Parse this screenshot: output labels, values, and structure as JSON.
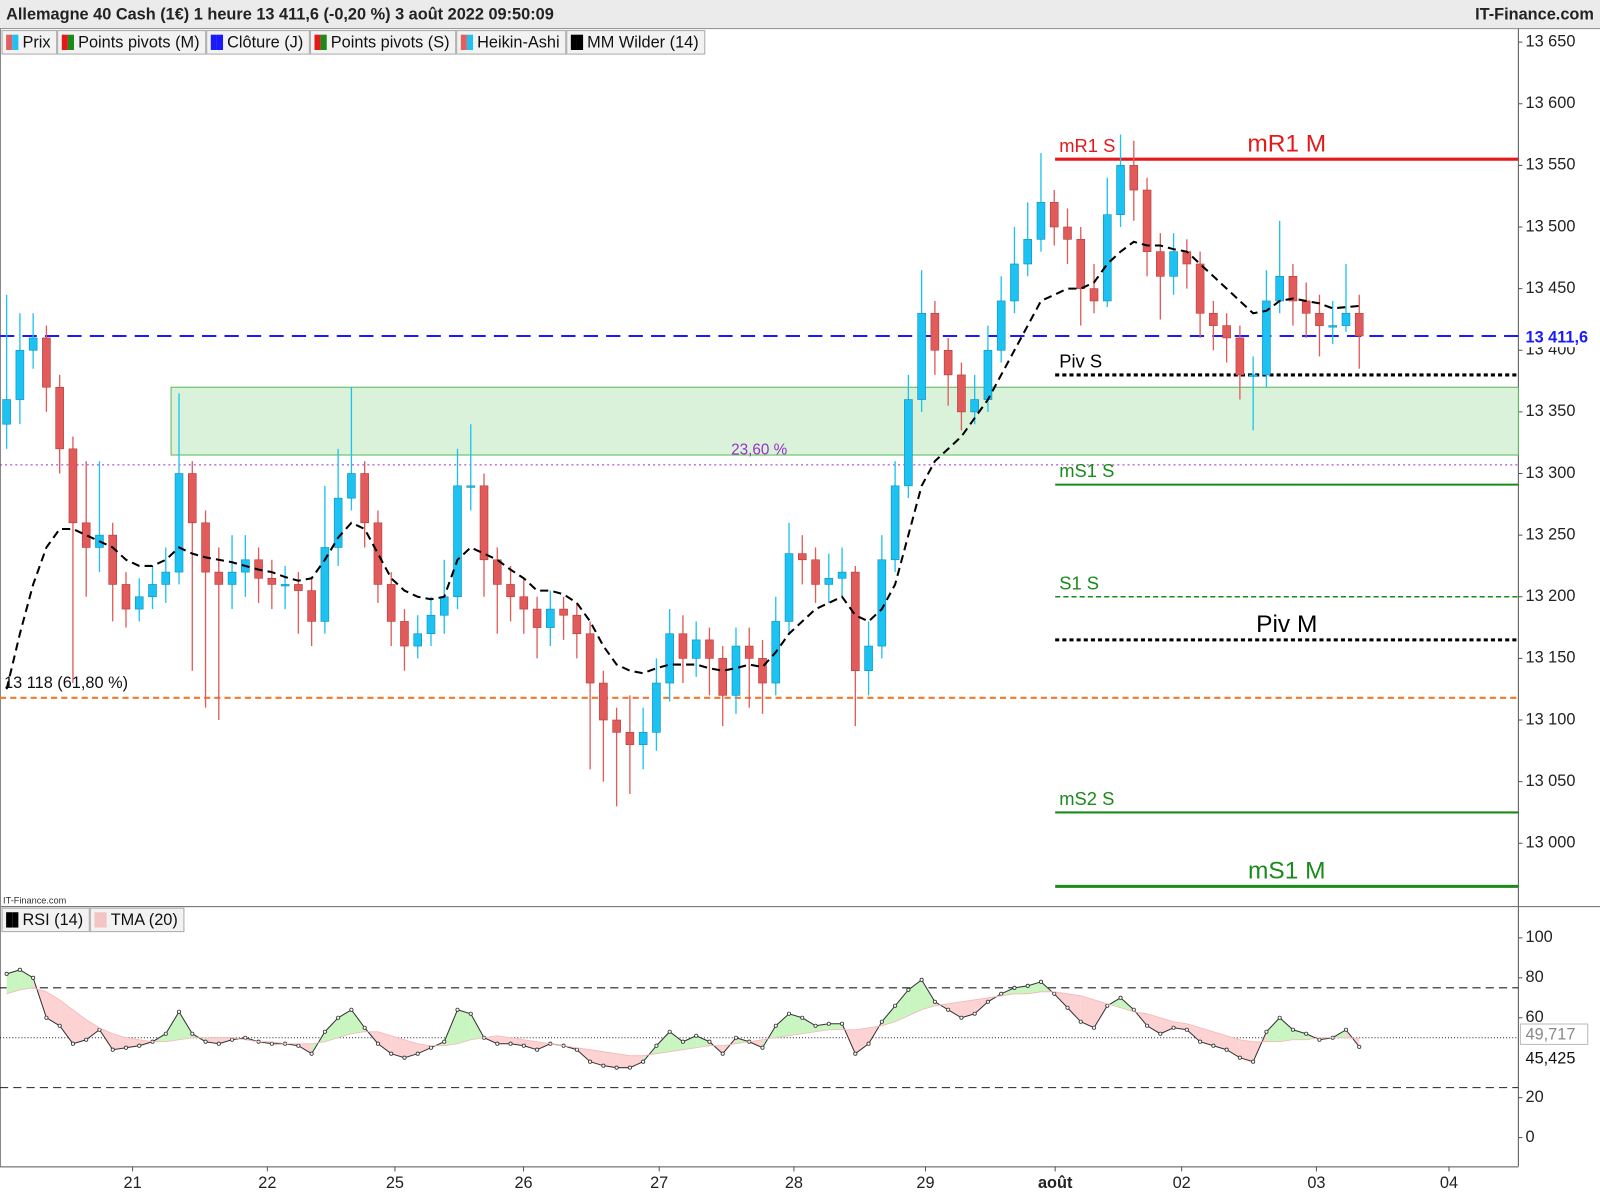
{
  "chart_data": [
    {
      "type": "candlestick",
      "title": "Allemagne 40 Cash (1€) 1 heure 13 411,6 (-0,20 %) 3 août 2022 09:50:09",
      "brand": "IT-Finance.com",
      "watermark": "IT-Finance.com",
      "legend": [
        {
          "name": "Prix",
          "colors": [
            "#e06060",
            "#20c0f0"
          ]
        },
        {
          "name": "Points pivots (M)",
          "colors": [
            "#e31a1c",
            "#1a8a1a"
          ]
        },
        {
          "name": "Clôture (J)",
          "colors": [
            "#1a1aff",
            "#1a1aff"
          ]
        },
        {
          "name": "Points pivots (S)",
          "colors": [
            "#e31a1c",
            "#1a8a1a"
          ]
        },
        {
          "name": "Heikin-Ashi",
          "colors": [
            "#e06060",
            "#20c0f0"
          ]
        },
        {
          "name": "MM Wilder (14)",
          "colors": [
            "#000000",
            "#000000"
          ]
        }
      ],
      "up_color": "#1cc3f2",
      "down_color": "#e15b5b",
      "open": [
        13340,
        13360,
        13400,
        13410,
        13370,
        13320,
        13260,
        13240,
        13250,
        13210,
        13190,
        13200,
        13210,
        13220,
        13300,
        13260,
        13220,
        13210,
        13220,
        13230,
        13215,
        13210,
        13210,
        13205,
        13180,
        13240,
        13280,
        13300,
        13260,
        13210,
        13180,
        13160,
        13170,
        13185,
        13200,
        13290,
        13290,
        13230,
        13210,
        13200,
        13190,
        13175,
        13190,
        13185,
        13170,
        13130,
        13100,
        13090,
        13080,
        13090,
        13130,
        13170,
        13150,
        13165,
        13150,
        13120,
        13160,
        13150,
        13130,
        13180,
        13235,
        13230,
        13210,
        13215,
        13220,
        13140,
        13160,
        13230,
        13290,
        13360,
        13430,
        13400,
        13380,
        13350,
        13360,
        13400,
        13440,
        13470,
        13490,
        13520,
        13500,
        13490,
        13450,
        13440,
        13510,
        13550,
        13530,
        13480,
        13460,
        13480,
        13470,
        13430,
        13420,
        13410,
        13380,
        13380,
        13440,
        13460,
        13440,
        13430,
        13420,
        13420,
        13430
      ],
      "high": [
        13445,
        13430,
        13430,
        13420,
        13380,
        13330,
        13310,
        13310,
        13260,
        13220,
        13215,
        13225,
        13240,
        13365,
        13310,
        13270,
        13240,
        13250,
        13250,
        13240,
        13230,
        13225,
        13220,
        13215,
        13290,
        13320,
        13370,
        13310,
        13270,
        13220,
        13190,
        13185,
        13200,
        13230,
        13320,
        13340,
        13300,
        13240,
        13225,
        13215,
        13200,
        13205,
        13200,
        13195,
        13180,
        13140,
        13110,
        13120,
        13110,
        13150,
        13190,
        13185,
        13180,
        13175,
        13160,
        13175,
        13175,
        13165,
        13200,
        13260,
        13250,
        13240,
        13235,
        13240,
        13225,
        13180,
        13250,
        13310,
        13380,
        13465,
        13440,
        13410,
        13390,
        13380,
        13420,
        13460,
        13500,
        13520,
        13560,
        13530,
        13515,
        13500,
        13470,
        13540,
        13575,
        13570,
        13540,
        13495,
        13495,
        13490,
        13480,
        13440,
        13430,
        13420,
        13395,
        13465,
        13505,
        13470,
        13455,
        13445,
        13440,
        13470,
        13445
      ],
      "low": [
        13320,
        13340,
        13385,
        13350,
        13300,
        13130,
        13200,
        13220,
        13180,
        13175,
        13180,
        13190,
        13195,
        13210,
        13140,
        13110,
        13100,
        13190,
        13200,
        13195,
        13190,
        13190,
        13170,
        13160,
        13170,
        13225,
        13270,
        13240,
        13195,
        13160,
        13140,
        13150,
        13160,
        13170,
        13190,
        13270,
        13200,
        13170,
        13180,
        13170,
        13150,
        13160,
        13165,
        13150,
        13060,
        13050,
        13030,
        13040,
        13060,
        13075,
        13115,
        13130,
        13135,
        13120,
        13095,
        13105,
        13110,
        13105,
        13120,
        13170,
        13210,
        13195,
        13195,
        13200,
        13095,
        13120,
        13150,
        13220,
        13280,
        13350,
        13380,
        13355,
        13335,
        13340,
        13350,
        13390,
        13430,
        13460,
        13480,
        13485,
        13470,
        13420,
        13430,
        13435,
        13500,
        13505,
        13460,
        13425,
        13445,
        13450,
        13410,
        13400,
        13390,
        13360,
        13335,
        13370,
        13430,
        13420,
        13410,
        13395,
        13405,
        13415,
        13385
      ],
      "close": [
        13360,
        13400,
        13410,
        13370,
        13320,
        13260,
        13240,
        13250,
        13210,
        13190,
        13200,
        13210,
        13220,
        13300,
        13260,
        13220,
        13210,
        13220,
        13230,
        13215,
        13210,
        13210,
        13205,
        13180,
        13240,
        13280,
        13300,
        13260,
        13210,
        13180,
        13160,
        13170,
        13185,
        13200,
        13290,
        13290,
        13230,
        13210,
        13200,
        13190,
        13175,
        13190,
        13185,
        13170,
        13130,
        13100,
        13090,
        13080,
        13090,
        13130,
        13170,
        13150,
        13165,
        13150,
        13120,
        13160,
        13150,
        13130,
        13180,
        13235,
        13230,
        13210,
        13215,
        13220,
        13140,
        13160,
        13230,
        13290,
        13360,
        13430,
        13400,
        13380,
        13350,
        13360,
        13400,
        13440,
        13470,
        13490,
        13520,
        13500,
        13490,
        13450,
        13440,
        13510,
        13550,
        13530,
        13480,
        13460,
        13480,
        13470,
        13430,
        13420,
        13410,
        13380,
        13380,
        13440,
        13460,
        13440,
        13430,
        13420,
        13420,
        13430,
        13411.6
      ],
      "ma": {
        "color": "#000000",
        "values": [
          13125,
          13170,
          13210,
          13240,
          13255,
          13255,
          13250,
          13245,
          13240,
          13230,
          13225,
          13225,
          13230,
          13240,
          13235,
          13232,
          13230,
          13228,
          13225,
          13222,
          13220,
          13216,
          13213,
          13215,
          13230,
          13248,
          13260,
          13255,
          13235,
          13215,
          13205,
          13200,
          13198,
          13200,
          13230,
          13240,
          13235,
          13230,
          13222,
          13215,
          13205,
          13205,
          13202,
          13195,
          13180,
          13160,
          13145,
          13140,
          13138,
          13142,
          13145,
          13145,
          13145,
          13142,
          13140,
          13142,
          13145,
          13143,
          13155,
          13170,
          13180,
          13190,
          13195,
          13200,
          13185,
          13180,
          13190,
          13210,
          13250,
          13290,
          13310,
          13320,
          13330,
          13345,
          13360,
          13380,
          13400,
          13420,
          13440,
          13445,
          13450,
          13450,
          13455,
          13470,
          13480,
          13488,
          13485,
          13485,
          13482,
          13480,
          13470,
          13460,
          13450,
          13440,
          13430,
          13432,
          13440,
          13442,
          13440,
          13438,
          13434,
          13435,
          13436
        ]
      },
      "last_value": {
        "value": 13411.6,
        "label": "13 411,6",
        "color": "#1a1aff"
      },
      "zone": {
        "range": [
          13315,
          13370
        ],
        "color": "#d9f2d9",
        "border": "#5cb85c"
      },
      "fibs": [
        {
          "value": 13307,
          "label": "23,60 %",
          "color": "#9b30c8"
        },
        {
          "value": 13118,
          "label": "13 118 (61,80 %)",
          "color": "#f07a2a"
        }
      ],
      "levels": [
        {
          "label": "mR1 S",
          "value": 13555,
          "color": "#e31a1c",
          "style": "solid"
        },
        {
          "label": "mR1 M",
          "value": 13555,
          "color": "#e31a1c",
          "style": "solid"
        },
        {
          "label": "Piv S",
          "value": 13380,
          "color": "#000000",
          "style": "dotted"
        },
        {
          "label": "mS1 S",
          "value": 13291,
          "color": "#1a8a1a",
          "style": "solid"
        },
        {
          "label": "S1 S",
          "value": 13200,
          "color": "#1a8a1a",
          "style": "dashed"
        },
        {
          "label": "Piv M",
          "value": 13165,
          "color": "#000000",
          "style": "dotted"
        },
        {
          "label": "mS2 S",
          "value": 13025,
          "color": "#1a8a1a",
          "style": "solid"
        },
        {
          "label": "mS1 M",
          "value": 12965,
          "color": "#1a8a1a",
          "style": "solid"
        }
      ],
      "xlim": [
        -0.5,
        114
      ],
      "xticks": [
        {
          "value": 9.5,
          "label": "21"
        },
        {
          "value": 19.66,
          "label": "22"
        },
        {
          "value": 29.28,
          "label": "25"
        },
        {
          "value": 38.98,
          "label": "26"
        },
        {
          "value": 49.21,
          "label": "27"
        },
        {
          "value": 59.37,
          "label": "28"
        },
        {
          "value": 69.29,
          "label": "29"
        },
        {
          "value": 79.07,
          "label": "août"
        },
        {
          "value": 88.61,
          "label": "02"
        },
        {
          "value": 98.77,
          "label": "03"
        },
        {
          "value": 108.77,
          "label": "04"
        }
      ],
      "ylim": [
        12949,
        13661
      ],
      "yticks": [
        {
          "value": 13650,
          "label": "13 650"
        },
        {
          "value": 13600,
          "label": "13 600"
        },
        {
          "value": 13550,
          "label": "13 550"
        },
        {
          "value": 13500,
          "label": "13 500"
        },
        {
          "value": 13450,
          "label": "13 450"
        },
        {
          "value": 13400,
          "label": "13 400"
        },
        {
          "value": 13350,
          "label": "13 350"
        },
        {
          "value": 13300,
          "label": "13 300"
        },
        {
          "value": 13250,
          "label": "13 250"
        },
        {
          "value": 13200,
          "label": "13 200"
        },
        {
          "value": 13150,
          "label": "13 150"
        },
        {
          "value": 13100,
          "label": "13 100"
        },
        {
          "value": 13050,
          "label": "13 050"
        },
        {
          "value": 13000,
          "label": "13 000"
        }
      ]
    },
    {
      "type": "line",
      "legend": [
        {
          "name": "RSI (14)",
          "colors": [
            "#000000",
            "#000000"
          ]
        },
        {
          "name": "TMA (20)",
          "colors": [
            "#f4c4c4",
            "#f4c4c4"
          ]
        }
      ],
      "series": [
        {
          "color": "#333333",
          "last_label": "45,425",
          "values": [
            82,
            84,
            80,
            60,
            56,
            47,
            49,
            54,
            44,
            45,
            46,
            48,
            52,
            63,
            52,
            48,
            47,
            49,
            50,
            48,
            47,
            47,
            46,
            42,
            53,
            60,
            64,
            55,
            47,
            42,
            40,
            42,
            45,
            48,
            64,
            62,
            50,
            47,
            47,
            46,
            44,
            47,
            46,
            44,
            38,
            36,
            35,
            35,
            38,
            46,
            53,
            48,
            51,
            48,
            42,
            50,
            48,
            45,
            56,
            62,
            60,
            56,
            57,
            57,
            42,
            47,
            58,
            66,
            74,
            79,
            68,
            64,
            60,
            62,
            68,
            72,
            75,
            76,
            78,
            72,
            65,
            58,
            55,
            66,
            70,
            64,
            56,
            52,
            55,
            54,
            48,
            46,
            44,
            40,
            38,
            53,
            60,
            54,
            52,
            49,
            50,
            54,
            45.425
          ]
        },
        {
          "color": "#f4b8b8",
          "last_label": "49,717",
          "values": [
            72,
            74,
            75,
            73,
            69,
            64,
            59,
            55,
            52,
            50,
            49,
            48,
            48,
            49,
            50,
            50,
            50,
            50,
            49,
            48,
            48,
            47,
            47,
            47,
            48,
            50,
            52,
            53,
            53,
            51,
            49,
            47,
            46,
            46,
            47,
            49,
            50,
            51,
            50,
            49,
            48,
            47,
            46,
            45,
            44,
            43,
            42,
            41,
            41,
            42,
            43,
            44,
            45,
            46,
            46,
            47,
            48,
            49,
            50,
            51,
            52,
            53,
            54,
            54,
            54,
            55,
            56,
            58,
            61,
            64,
            66,
            67,
            68,
            69,
            70,
            71,
            72,
            72,
            73,
            73,
            72,
            71,
            69,
            67,
            65,
            63,
            62,
            60,
            58,
            57,
            55,
            53,
            51,
            49,
            48,
            48,
            48,
            49,
            49,
            50,
            50,
            50,
            49.717
          ]
        }
      ],
      "above_color": "#c8f5c0",
      "below_color": "#fcd2d2",
      "levels": [
        75,
        50,
        25
      ],
      "ylim": [
        -14.4,
        115.4
      ],
      "yticks": [
        100,
        80,
        60,
        20,
        0
      ]
    }
  ]
}
